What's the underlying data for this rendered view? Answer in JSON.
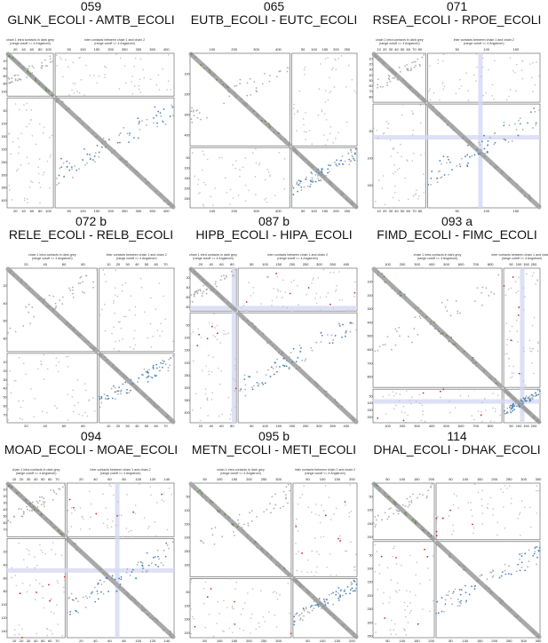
{
  "panels": [
    {
      "num": "059",
      "name": "GLNK_ECOLI - AMTB_ECOLI",
      "len1": 112,
      "len2": 428,
      "ticks1": [
        "20",
        "40",
        "60",
        "80",
        "100"
      ],
      "ticks2": [
        "50",
        "100",
        "150",
        "200",
        "250",
        "300",
        "350",
        "400"
      ],
      "caption1": "chain 1 intra contacts in dark grey",
      "caption2": "inter contacts between chain 1 and chain 2",
      "subcap": "(range cutoff <= 4 Angstrom)"
    },
    {
      "num": "065",
      "name": "EUTB_ECOLI - EUTC_ECOLI",
      "len1": 453,
      "len2": 295,
      "ticks1": [
        "100",
        "200",
        "300",
        "400"
      ],
      "ticks2": [
        "50",
        "100",
        "150",
        "200",
        "250"
      ],
      "caption1": "",
      "caption2": "",
      "subcap": ""
    },
    {
      "num": "071",
      "name": "RSEA_ECOLI - RPOE_ECOLI",
      "len1": 90,
      "len2": 191,
      "ticks1": [
        "10",
        "20",
        "30",
        "40",
        "50",
        "60",
        "70",
        "80"
      ],
      "ticks2": [
        "50",
        "100",
        "150"
      ],
      "caption1": "chain 1 intra contacts in dark grey",
      "caption2": "inter contacts between chain 1 and chain 2",
      "subcap": "(range cutoff <= 4 Angstrom)"
    },
    {
      "num": "072 b",
      "name": "RELE_ECOLI - RELB_ECOLI",
      "len1": 95,
      "len2": 79,
      "ticks1": [
        "20",
        "40",
        "60",
        "80"
      ],
      "ticks2": [
        "10",
        "20",
        "30",
        "40",
        "50",
        "60",
        "70"
      ],
      "caption1": "chain 1 intra contacts in dark grey",
      "caption2": "inter contacts between chain 1 and chain 2",
      "subcap": "(range cutoff <= 4 Angstrom)"
    },
    {
      "num": "087 b",
      "name": "HIPB_ECOLI - HIPA_ECOLI",
      "len1": 88,
      "len2": 440,
      "ticks1": [
        "20",
        "40",
        "60",
        "80"
      ],
      "ticks2": [
        "50",
        "100",
        "150",
        "200",
        "250",
        "300",
        "350",
        "400"
      ],
      "caption1": "chain 1 intra contacts in dark grey",
      "caption2": "inter contacts between chain 1 and chain 2",
      "subcap": "(range cutoff <= 4 Angstrom)"
    },
    {
      "num": "093 a",
      "name": "FIMD_ECOLI - FIMC_ECOLI",
      "len1": 878,
      "len2": 241,
      "ticks1": [
        "100",
        "200",
        "300",
        "400",
        "500",
        "600",
        "700",
        "800"
      ],
      "ticks2": [
        "50",
        "100",
        "150",
        "200"
      ],
      "caption1": "chain 1 intra contacts in dark grey",
      "caption2": "inter contacts between chain 1 and chain 2",
      "subcap": "(range cutoff <= 4 Angstrom)"
    },
    {
      "num": "094",
      "name": "MOAD_ECOLI - MOAE_ECOLI",
      "len1": 81,
      "len2": 150,
      "ticks1": [
        "10",
        "20",
        "30",
        "40",
        "50",
        "60",
        "70",
        "80"
      ],
      "ticks2": [
        "20",
        "40",
        "60",
        "80",
        "100",
        "120",
        "140"
      ],
      "caption1": "chain 1 intra contacts in dark grey",
      "caption2": "inter contacts between chain 1 and chain 2",
      "subcap": "(range cutoff <= 4 Angstrom)"
    },
    {
      "num": "095 b",
      "name": "METN_ECOLI - METI_ECOLI",
      "len1": 343,
      "len2": 217,
      "ticks1": [
        "50",
        "100",
        "150",
        "200",
        "250",
        "300"
      ],
      "ticks2": [
        "50",
        "100",
        "150",
        "200"
      ],
      "caption1": "chain 1 intra contacts in dark grey",
      "caption2": "inter contacts between chain 1 and chain 2",
      "subcap": "(range cutoff <= 4 Angstrom)"
    },
    {
      "num": "114",
      "name": "DHAL_ECOLI - DHAK_ECOLI",
      "len1": 210,
      "len2": 356,
      "ticks1": [
        "50",
        "100",
        "150",
        "200"
      ],
      "ticks2": [
        "50",
        "100",
        "150",
        "200",
        "250",
        "300",
        "350"
      ],
      "caption1": "",
      "caption2": "",
      "subcap": ""
    }
  ]
}
